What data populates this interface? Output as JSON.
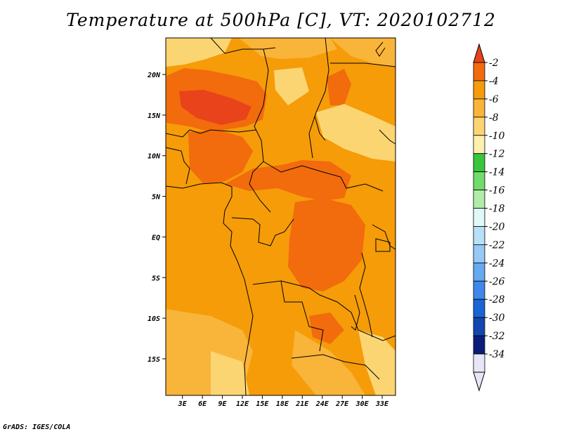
{
  "title": "Temperature at 500hPa [C], VT: 2020102712",
  "credit": "GrADS: IGES/COLA",
  "map": {
    "lat_labels": [
      "20N",
      "15N",
      "10N",
      "5N",
      "EQ",
      "5S",
      "10S",
      "15S"
    ],
    "lat_values": [
      20,
      15,
      10,
      5,
      0,
      -5,
      -10,
      -15
    ],
    "lon_labels": [
      "3E",
      "6E",
      "9E",
      "12E",
      "15E",
      "18E",
      "21E",
      "24E",
      "27E",
      "30E",
      "33E"
    ],
    "lon_values": [
      3,
      6,
      9,
      12,
      15,
      18,
      21,
      24,
      27,
      30,
      33
    ],
    "extent": {
      "lon_min": 0.5,
      "lon_max": 35,
      "lat_min": -19.5,
      "lat_max": 24.5
    }
  },
  "colorbar": {
    "labels": [
      "-2",
      "-4",
      "-6",
      "-8",
      "-10",
      "-12",
      "-14",
      "-16",
      "-18",
      "-20",
      "-22",
      "-24",
      "-26",
      "-28",
      "-30",
      "-32",
      "-34"
    ],
    "colors": [
      "#e8431a",
      "#f26b0d",
      "#f59c08",
      "#f9b43a",
      "#fcd573",
      "#fef0ae",
      "#37c63c",
      "#6fdc6c",
      "#b1eca8",
      "#e0f9f8",
      "#b8e0f8",
      "#97c9f5",
      "#66aaf0",
      "#3d88e8",
      "#1a64d6",
      "#1446b0",
      "#0a1e78",
      "#e6e6f7"
    ]
  }
}
